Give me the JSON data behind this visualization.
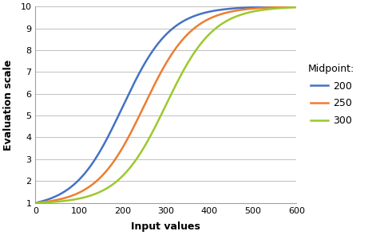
{
  "title": "",
  "xlabel": "Input values",
  "ylabel": "Evaluation scale",
  "xlim": [
    0,
    600
  ],
  "ylim": [
    1,
    10
  ],
  "xticks": [
    0,
    100,
    200,
    300,
    400,
    500,
    600
  ],
  "yticks": [
    1,
    2,
    3,
    4,
    5,
    6,
    7,
    8,
    9,
    10
  ],
  "curves": [
    {
      "midpoint": 200,
      "color": "#4472C4",
      "label": "200"
    },
    {
      "midpoint": 250,
      "color": "#ED7D31",
      "label": "250"
    },
    {
      "midpoint": 300,
      "color": "#9DC82D",
      "label": "300"
    }
  ],
  "legend_title": "Midpoint:",
  "spread": 55,
  "scale_min": 1,
  "scale_max": 10,
  "background_color": "#FFFFFF",
  "grid_color": "#C0C0C0",
  "figwidth": 4.76,
  "figheight": 2.95,
  "dpi": 100
}
